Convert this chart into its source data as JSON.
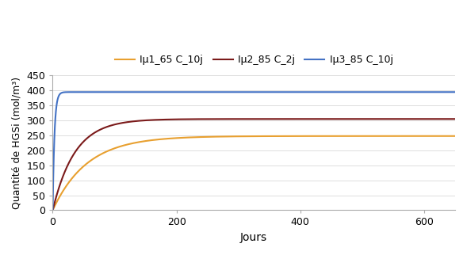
{
  "title": "",
  "xlabel": "Jours",
  "ylabel": "Quantité de HGSi (mol/m³)",
  "xlim": [
    0,
    650
  ],
  "ylim": [
    0,
    450
  ],
  "yticks": [
    0,
    50,
    100,
    150,
    200,
    250,
    300,
    350,
    400,
    450
  ],
  "xticks": [
    0,
    200,
    400,
    600
  ],
  "series": [
    {
      "label": "Iμ1_65 C_10j",
      "color": "#E8A030",
      "plateau": 248,
      "rate": 0.018,
      "init": 0
    },
    {
      "label": "Iμ2_85 C_2j",
      "color": "#7B1A1A",
      "plateau": 305,
      "rate": 0.028,
      "init": 0
    },
    {
      "label": "Iμ3_85 C_10j",
      "color": "#4472C4",
      "plateau": 395,
      "rate": 0.35,
      "init": 0
    }
  ],
  "legend_loc": "upper center",
  "legend_ncol": 3,
  "background_color": "#FFFFFF",
  "grid_color": "#DDDDDD",
  "spine_color": "#AAAAAA",
  "linewidth": 1.5,
  "tick_labelsize": 9,
  "legend_fontsize": 9,
  "xlabel_fontsize": 10,
  "ylabel_fontsize": 9
}
